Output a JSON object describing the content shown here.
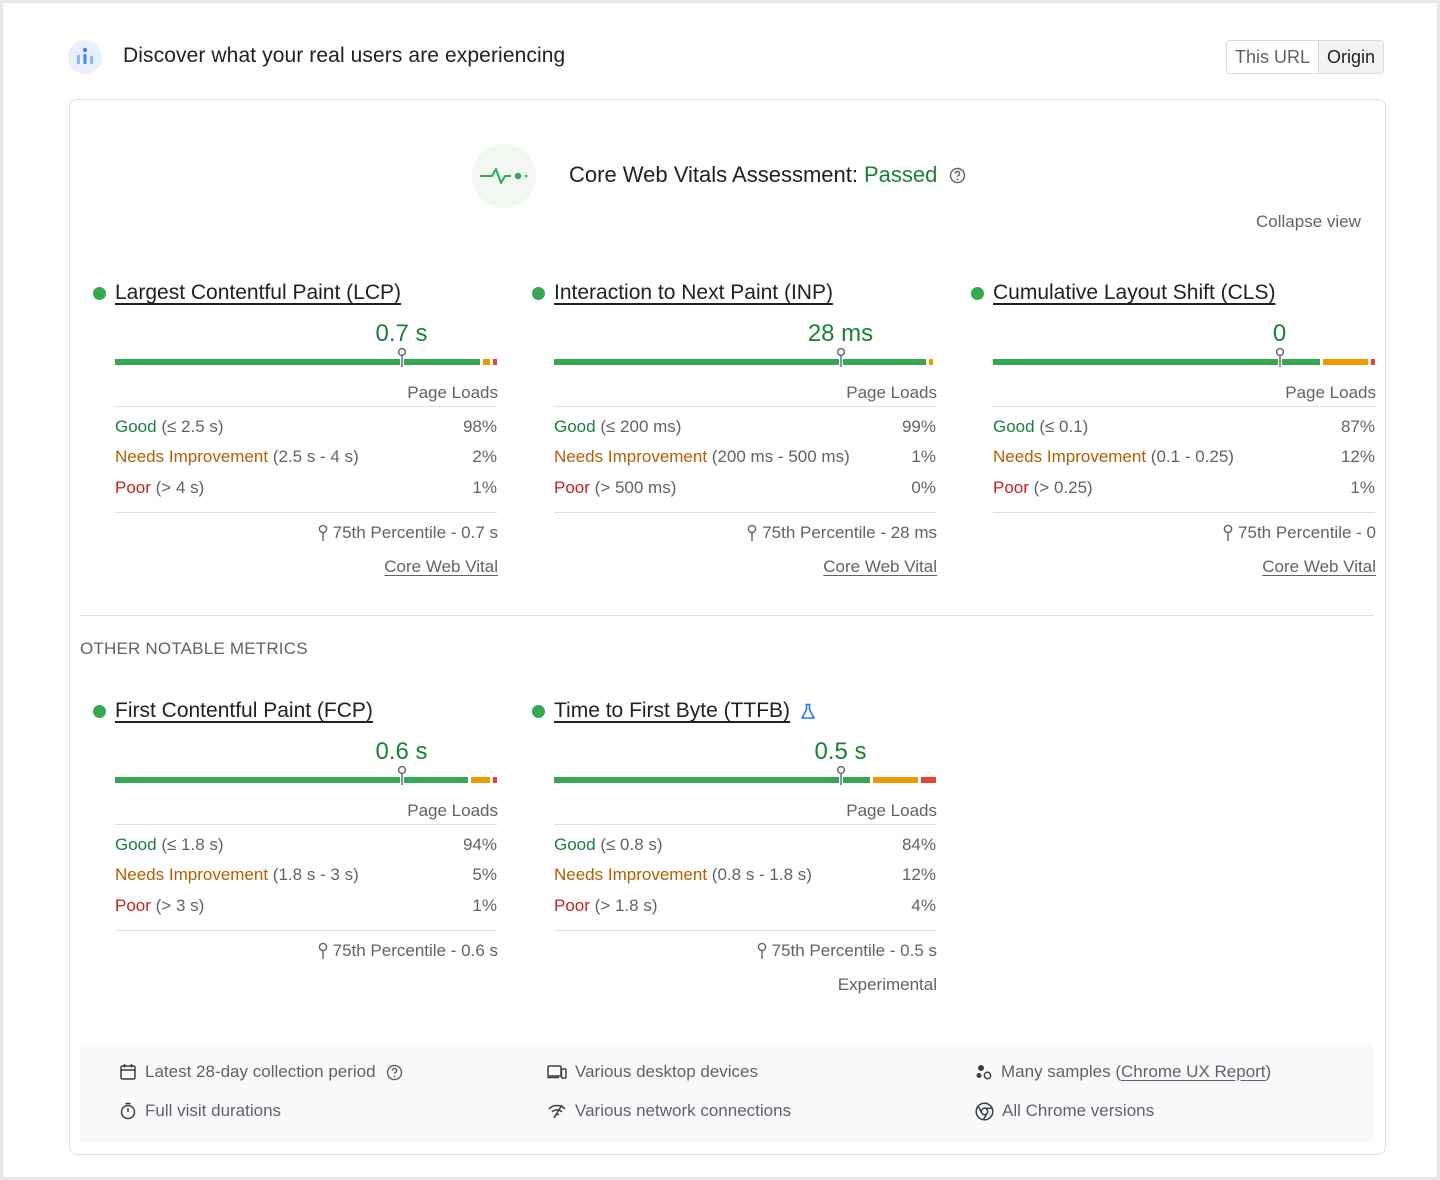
{
  "header": {
    "title": "Discover what your real users are experiencing",
    "toggle": [
      "This URL",
      "Origin"
    ],
    "toggle_active": "Origin"
  },
  "assessment": {
    "label": "Core Web Vitals Assessment:",
    "status": "Passed",
    "collapse": "Collapse view"
  },
  "metrics": {
    "lcp": {
      "name": "Largest Contentful Paint (LCP)",
      "value": "0.7 s",
      "marker_position": 0.75,
      "distribution": {
        "good": 98,
        "needs_improvement": 2,
        "poor": 1
      },
      "page_loads": "Page Loads",
      "good_label": "Good",
      "good_range": " (≤ 2.5 s)",
      "good_pct": "98%",
      "ni_label": "Needs Improvement",
      "ni_range": " (2.5 s - 4 s)",
      "ni_pct": "2%",
      "poor_label": "Poor",
      "poor_range": " (> 4 s)",
      "poor_pct": "1%",
      "percentile": "75th Percentile - 0.7 s",
      "footer": "Core Web Vital"
    },
    "inp": {
      "name": "Interaction to Next Paint (INP)",
      "value": "28 ms",
      "marker_position": 0.75,
      "distribution": {
        "good": 99,
        "needs_improvement": 1,
        "poor": 0
      },
      "page_loads": "Page Loads",
      "good_label": "Good",
      "good_range": " (≤ 200 ms)",
      "good_pct": "99%",
      "ni_label": "Needs Improvement",
      "ni_range": " (200 ms - 500 ms)",
      "ni_pct": "1%",
      "poor_label": "Poor",
      "poor_range": " (> 500 ms)",
      "poor_pct": "0%",
      "percentile": "75th Percentile - 28 ms",
      "footer": "Core Web Vital"
    },
    "cls": {
      "name": "Cumulative Layout Shift (CLS)",
      "value": "0",
      "marker_position": 0.75,
      "distribution": {
        "good": 87,
        "needs_improvement": 12,
        "poor": 1
      },
      "page_loads": "Page Loads",
      "good_label": "Good",
      "good_range": " (≤ 0.1)",
      "good_pct": "87%",
      "ni_label": "Needs Improvement",
      "ni_range": " (0.1 - 0.25)",
      "ni_pct": "12%",
      "poor_label": "Poor",
      "poor_range": " (> 0.25)",
      "poor_pct": "1%",
      "percentile": "75th Percentile - 0",
      "footer": "Core Web Vital"
    },
    "fcp": {
      "name": "First Contentful Paint (FCP)",
      "value": "0.6 s",
      "marker_position": 0.75,
      "distribution": {
        "good": 94,
        "needs_improvement": 5,
        "poor": 1
      },
      "page_loads": "Page Loads",
      "good_label": "Good",
      "good_range": " (≤ 1.8 s)",
      "good_pct": "94%",
      "ni_label": "Needs Improvement",
      "ni_range": " (1.8 s - 3 s)",
      "ni_pct": "5%",
      "poor_label": "Poor",
      "poor_range": " (> 3 s)",
      "poor_pct": "1%",
      "percentile": "75th Percentile - 0.6 s"
    },
    "ttfb": {
      "name": "Time to First Byte (TTFB)",
      "value": "0.5 s",
      "marker_position": 0.75,
      "distribution": {
        "good": 84,
        "needs_improvement": 12,
        "poor": 4
      },
      "page_loads": "Page Loads",
      "good_label": "Good",
      "good_range": " (≤ 0.8 s)",
      "good_pct": "84%",
      "ni_label": "Needs Improvement",
      "ni_range": " (0.8 s - 1.8 s)",
      "ni_pct": "12%",
      "poor_label": "Poor",
      "poor_range": " (> 1.8 s)",
      "poor_pct": "4%",
      "percentile": "75th Percentile - 0.5 s",
      "footer": "Experimental"
    }
  },
  "other_heading": "OTHER NOTABLE METRICS",
  "footer": {
    "collection": "Latest 28-day collection period",
    "durations": "Full visit durations",
    "devices": "Various desktop devices",
    "network": "Various network connections",
    "samples_prefix": "Many samples (",
    "samples_link": "Chrome UX Report",
    "samples_suffix": ")",
    "chrome": "All Chrome versions"
  },
  "colors": {
    "good": "#34a853",
    "needs_improvement": "#f29900",
    "poor": "#ea4335",
    "passed": "#188038"
  }
}
